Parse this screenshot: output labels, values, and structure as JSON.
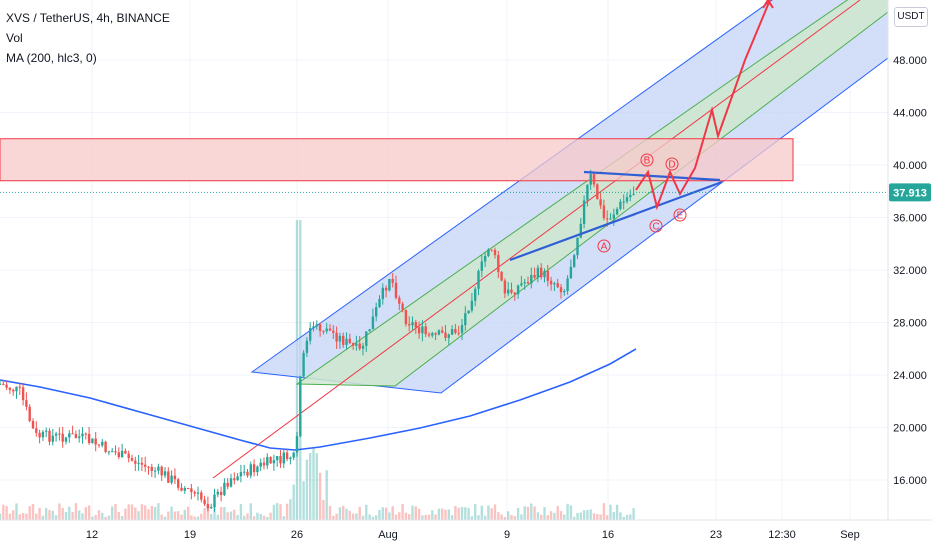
{
  "legend": {
    "symbol": "XVS / TetherUS, 4h, BINANCE",
    "volume": "Vol",
    "ma": "MA (200, hlc3, 0)"
  },
  "currency": "USDT",
  "last_price": "37.913",
  "colors": {
    "up": "#26a69a",
    "down": "#ef5350",
    "ma": "#2962ff",
    "resistance_fill": "#f8c9c9",
    "resistance_line": "#f23645",
    "channel_blue": "#c4d4f5",
    "channel_green": "#cfe8cf",
    "projection": "#f23645",
    "triangle": "#2f5fd6",
    "price_tag": "#26a69a"
  },
  "chart_data": {
    "type": "candlestick",
    "title": "XVS / TetherUS, 4h, BINANCE",
    "x_ticks": [
      "12",
      "19",
      "26",
      "Aug",
      "9",
      "16",
      "23",
      "12:30",
      "Sep"
    ],
    "y_ticks": [
      "16.000",
      "20.000",
      "24.000",
      "28.000",
      "32.000",
      "36.000",
      "40.000",
      "44.000",
      "48.000"
    ],
    "ylim": [
      12,
      53
    ],
    "last_price": 37.913,
    "resistance_zone": [
      38.8,
      42.0
    ],
    "wave_labels": [
      "A",
      "B",
      "C",
      "D",
      "E"
    ],
    "indicators": [
      "Vol",
      "MA (200, hlc3, 0)"
    ]
  }
}
